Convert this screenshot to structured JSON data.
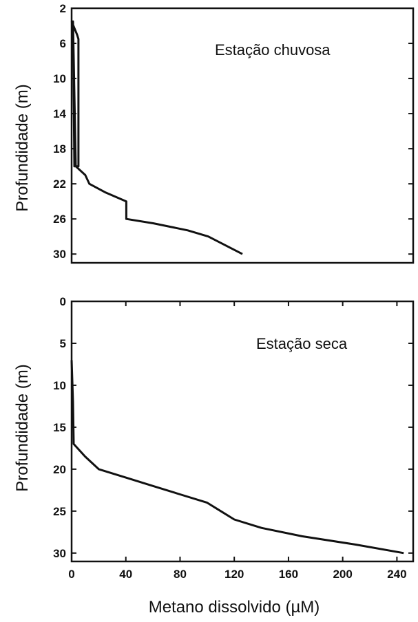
{
  "chart_data": [
    {
      "type": "line",
      "annotation": "Estação chuvosa",
      "ylabel": "Profundidade (m)",
      "xlabel": "",
      "xlim": [
        0,
        250
      ],
      "ylim": [
        2,
        31
      ],
      "y_inverted": true,
      "yticks": [
        2,
        6,
        10,
        14,
        18,
        22,
        26,
        30
      ],
      "xticks": [],
      "points": [
        {
          "x": 0,
          "y": 3.5
        },
        {
          "x": 4,
          "y": 5
        },
        {
          "x": 5,
          "y": 5.5
        },
        {
          "x": 5,
          "y": 20
        },
        {
          "x": 2,
          "y": 20
        },
        {
          "x": 1,
          "y": 3.5
        },
        {
          "x": 3,
          "y": 20
        },
        {
          "x": 10,
          "y": 21
        },
        {
          "x": 13,
          "y": 22
        },
        {
          "x": 25,
          "y": 23
        },
        {
          "x": 40,
          "y": 24
        },
        {
          "x": 40,
          "y": 26
        },
        {
          "x": 60,
          "y": 26.5
        },
        {
          "x": 85,
          "y": 27.3
        },
        {
          "x": 100,
          "y": 28
        },
        {
          "x": 125,
          "y": 30
        }
      ]
    },
    {
      "type": "line",
      "annotation": "Estação seca",
      "ylabel": "Profundidade (m)",
      "xlabel": "Metano dissolvido (µM)",
      "xlim": [
        0,
        252
      ],
      "ylim": [
        0,
        31
      ],
      "y_inverted": true,
      "yticks": [
        0,
        5,
        10,
        15,
        20,
        25,
        30
      ],
      "xticks": [
        0,
        40,
        80,
        120,
        160,
        200,
        240
      ],
      "points": [
        {
          "x": 0,
          "y": 7
        },
        {
          "x": 1,
          "y": 12
        },
        {
          "x": 1.5,
          "y": 17
        },
        {
          "x": 10,
          "y": 18.5
        },
        {
          "x": 20,
          "y": 20
        },
        {
          "x": 40,
          "y": 21
        },
        {
          "x": 60,
          "y": 22
        },
        {
          "x": 80,
          "y": 23
        },
        {
          "x": 100,
          "y": 24
        },
        {
          "x": 110,
          "y": 25
        },
        {
          "x": 120,
          "y": 26
        },
        {
          "x": 140,
          "y": 27
        },
        {
          "x": 170,
          "y": 28
        },
        {
          "x": 210,
          "y": 29
        },
        {
          "x": 245,
          "y": 30
        }
      ]
    }
  ]
}
